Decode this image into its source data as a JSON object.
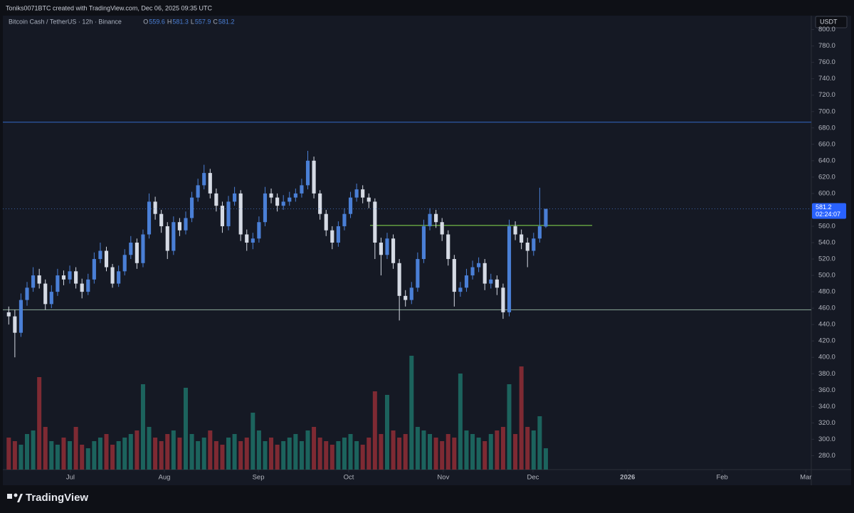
{
  "header": "Toniks0071BTC created with TradingView.com, Dec 06, 2025 09:35 UTC",
  "chart_data": {
    "type": "candlestick",
    "title": "Bitcoin Cash / TetherUS · 12h · Binance",
    "ohlc_labels": [
      "O",
      "H",
      "L",
      "C"
    ],
    "open": [
      455,
      450,
      430,
      470,
      485,
      500,
      490,
      465,
      480,
      500,
      495,
      505,
      490,
      480,
      495,
      520,
      530,
      510,
      490,
      505,
      525,
      540,
      515,
      550,
      590,
      575,
      560,
      530,
      565,
      555,
      570,
      595,
      610,
      625,
      600,
      585,
      560,
      590,
      600,
      550,
      540,
      545,
      565,
      600,
      595,
      585,
      590,
      595,
      600,
      610,
      640,
      600,
      575,
      555,
      540,
      560,
      575,
      595,
      605,
      595,
      590,
      540,
      525,
      545,
      515,
      475,
      470,
      485,
      520,
      560,
      575,
      565,
      550,
      520,
      480,
      485,
      500,
      510,
      515,
      490,
      495,
      485,
      455,
      560,
      550,
      540,
      530,
      545,
      559.6
    ],
    "high": [
      462,
      458,
      478,
      492,
      510,
      508,
      495,
      488,
      508,
      506,
      512,
      510,
      496,
      502,
      528,
      540,
      535,
      514,
      512,
      532,
      548,
      545,
      556,
      600,
      596,
      580,
      565,
      572,
      570,
      578,
      602,
      618,
      635,
      630,
      606,
      590,
      597,
      608,
      604,
      556,
      552,
      572,
      608,
      606,
      600,
      598,
      602,
      606,
      618,
      652,
      645,
      604,
      580,
      560,
      566,
      582,
      602,
      612,
      610,
      600,
      594,
      546,
      552,
      550,
      520,
      482,
      492,
      528,
      568,
      582,
      580,
      570,
      555,
      525,
      492,
      508,
      518,
      522,
      520,
      502,
      500,
      490,
      568,
      566,
      556,
      546,
      552,
      607,
      581.3
    ],
    "low": [
      440,
      400,
      425,
      463,
      480,
      484,
      458,
      460,
      475,
      488,
      490,
      484,
      472,
      476,
      490,
      515,
      505,
      485,
      486,
      500,
      520,
      508,
      510,
      545,
      568,
      552,
      520,
      525,
      548,
      550,
      565,
      590,
      605,
      594,
      578,
      552,
      555,
      585,
      542,
      530,
      532,
      540,
      560,
      588,
      578,
      580,
      585,
      590,
      595,
      605,
      594,
      568,
      548,
      532,
      535,
      555,
      570,
      590,
      588,
      582,
      520,
      500,
      520,
      508,
      445,
      462,
      465,
      480,
      515,
      555,
      558,
      542,
      512,
      462,
      474,
      480,
      495,
      504,
      482,
      484,
      476,
      447,
      450,
      543,
      532,
      510,
      524,
      540,
      557.9
    ],
    "close": [
      450,
      430,
      470,
      485,
      500,
      490,
      465,
      480,
      500,
      495,
      505,
      490,
      480,
      495,
      520,
      530,
      510,
      490,
      505,
      525,
      540,
      515,
      550,
      590,
      575,
      560,
      530,
      565,
      555,
      570,
      595,
      610,
      625,
      600,
      585,
      560,
      590,
      600,
      550,
      540,
      545,
      565,
      600,
      595,
      585,
      590,
      595,
      600,
      610,
      640,
      600,
      575,
      555,
      540,
      560,
      575,
      595,
      605,
      595,
      590,
      540,
      525,
      545,
      515,
      475,
      470,
      485,
      520,
      560,
      575,
      565,
      550,
      520,
      480,
      485,
      500,
      510,
      515,
      490,
      495,
      485,
      455,
      560,
      550,
      540,
      530,
      545,
      560,
      581.2
    ],
    "volume": [
      45,
      40,
      35,
      50,
      55,
      130,
      60,
      40,
      35,
      45,
      40,
      60,
      35,
      30,
      40,
      45,
      50,
      35,
      40,
      45,
      50,
      55,
      120,
      60,
      45,
      40,
      50,
      55,
      45,
      115,
      50,
      40,
      45,
      55,
      40,
      35,
      45,
      50,
      40,
      45,
      80,
      55,
      40,
      45,
      35,
      40,
      45,
      50,
      40,
      55,
      60,
      45,
      40,
      35,
      40,
      45,
      50,
      40,
      35,
      45,
      110,
      50,
      105,
      55,
      45,
      50,
      160,
      60,
      55,
      50,
      45,
      40,
      50,
      45,
      135,
      55,
      50,
      45,
      40,
      50,
      55,
      60,
      120,
      50,
      145,
      60,
      55,
      75,
      30
    ],
    "up_color": "#4a7fd6",
    "down_color": "#d5dae4",
    "volume_up_color": "#1d6b64",
    "volume_down_color": "#8a2c35",
    "xlim": [
      -0.5,
      131.5
    ],
    "xticks": [
      {
        "value": 10.1,
        "label": "Jul"
      },
      {
        "value": 25.5,
        "label": "Aug"
      },
      {
        "value": 40.9,
        "label": "Sep"
      },
      {
        "value": 55.7,
        "label": "Oct"
      },
      {
        "value": 71.2,
        "label": "Nov"
      },
      {
        "value": 85.9,
        "label": "Dec"
      },
      {
        "value": 101.4,
        "label": "2026"
      },
      {
        "value": 116.9,
        "label": "Feb"
      },
      {
        "value": 130.6,
        "label": "Mar"
      }
    ],
    "ylim": [
      263,
      817
    ],
    "yticks": [
      {
        "value": 280,
        "label": "280.0"
      },
      {
        "value": 300,
        "label": "300.0"
      },
      {
        "value": 320,
        "label": "320.0"
      },
      {
        "value": 340,
        "label": "340.0"
      },
      {
        "value": 360,
        "label": "360.0"
      },
      {
        "value": 380,
        "label": "380.0"
      },
      {
        "value": 400,
        "label": "400.0"
      },
      {
        "value": 420,
        "label": "420.0"
      },
      {
        "value": 440,
        "label": "440.0"
      },
      {
        "value": 460,
        "label": "460.0"
      },
      {
        "value": 480,
        "label": "480.0"
      },
      {
        "value": 500,
        "label": "500.0"
      },
      {
        "value": 520,
        "label": "520.0"
      },
      {
        "value": 540,
        "label": "540.0"
      },
      {
        "value": 560,
        "label": "560.0"
      },
      {
        "value": 580,
        "label": "580.0"
      },
      {
        "value": 600,
        "label": "600.0"
      },
      {
        "value": 620,
        "label": "620.0"
      },
      {
        "value": 640,
        "label": "640.0"
      },
      {
        "value": 660,
        "label": "660.0"
      },
      {
        "value": 680,
        "label": "680.0"
      },
      {
        "value": 700,
        "label": "700.0"
      },
      {
        "value": 720,
        "label": "720.0"
      },
      {
        "value": 740,
        "label": "740.0"
      },
      {
        "value": 760,
        "label": "760.0"
      },
      {
        "value": 780,
        "label": "780.0"
      },
      {
        "value": 800,
        "label": "800.0"
      }
    ],
    "volume_lim": [
      0,
      200
    ],
    "unit": "USDT",
    "levels": [
      {
        "value": 687,
        "color": "#2f5fb3"
      },
      {
        "value": 458,
        "color": "#7f9a8c"
      },
      {
        "value": 561,
        "color": "#7cc94a",
        "from": 59.2,
        "to": 95.6
      }
    ],
    "countdown": "02:24:07"
  },
  "footer": "TradingView"
}
